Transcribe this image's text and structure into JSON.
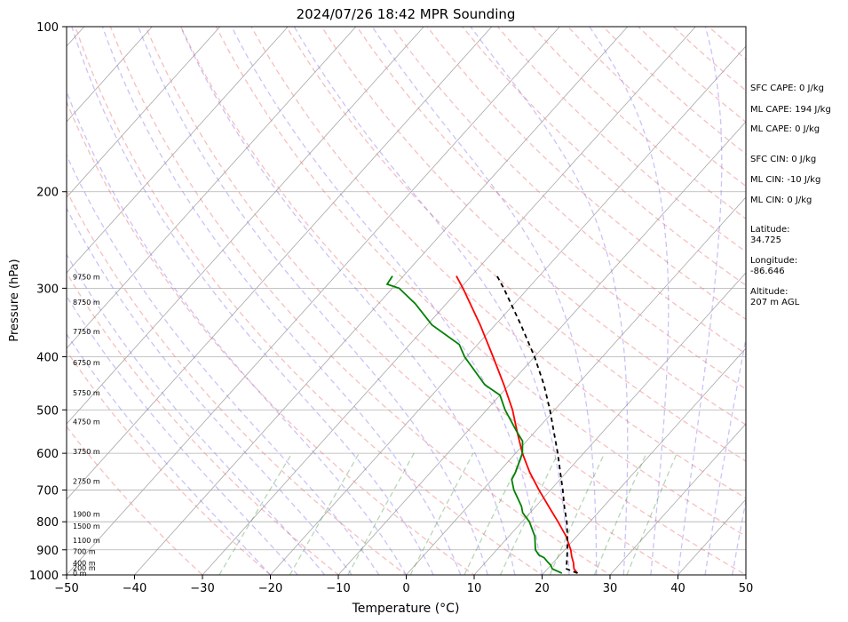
{
  "chart_data": {
    "type": "line",
    "title": "2024/07/26 18:42 MPR Sounding",
    "xlabel": "Temperature (°C)",
    "ylabel": "Pressure (hPa)",
    "xlim": [
      -50,
      50
    ],
    "ylim": [
      1000,
      100
    ],
    "y_scale": "log",
    "grid": true,
    "x_ticks": [
      -50,
      -40,
      -30,
      -20,
      -10,
      0,
      10,
      20,
      30,
      40,
      50
    ],
    "y_ticks": [
      100,
      200,
      300,
      400,
      500,
      600,
      700,
      800,
      900,
      1000
    ],
    "height_labels": [
      {
        "p": 286,
        "label": "9750 m"
      },
      {
        "p": 318,
        "label": "8750 m"
      },
      {
        "p": 360,
        "label": "7750 m"
      },
      {
        "p": 410,
        "label": "6750 m"
      },
      {
        "p": 465,
        "label": "5750 m"
      },
      {
        "p": 525,
        "label": "4750 m"
      },
      {
        "p": 595,
        "label": "3750 m"
      },
      {
        "p": 675,
        "label": "2750 m"
      },
      {
        "p": 775,
        "label": "1900 m"
      },
      {
        "p": 815,
        "label": "1500 m"
      },
      {
        "p": 865,
        "label": "1100 m"
      },
      {
        "p": 905,
        "label": "700 m"
      },
      {
        "p": 950,
        "label": "400 m"
      },
      {
        "p": 970,
        "label": "200 m"
      },
      {
        "p": 993,
        "label": "0 m"
      }
    ],
    "series": [
      {
        "name": "Temperature",
        "color": "#ff0000",
        "p": [
          993,
          975,
          950,
          925,
          900,
          850,
          800,
          750,
          700,
          650,
          600,
          550,
          500,
          450,
          400,
          350,
          300,
          285
        ],
        "values": [
          25.0,
          23.9,
          23.0,
          21.9,
          20.9,
          18.4,
          15.3,
          11.9,
          8.3,
          4.6,
          1.0,
          -2.5,
          -6.2,
          -10.8,
          -16.1,
          -22.2,
          -29.6,
          -32.2
        ]
      },
      {
        "name": "Dewpoint",
        "color": "#008000",
        "p": [
          993,
          975,
          960,
          950,
          930,
          920,
          900,
          850,
          800,
          770,
          750,
          700,
          670,
          650,
          600,
          570,
          550,
          500,
          470,
          450,
          400,
          380,
          350,
          320,
          300,
          295,
          285
        ],
        "values": [
          22.7,
          20.7,
          20.0,
          19.3,
          18.0,
          16.9,
          15.7,
          13.8,
          11.1,
          8.9,
          7.9,
          4.6,
          2.9,
          2.5,
          1.0,
          -0.6,
          -2.5,
          -7.3,
          -10.0,
          -13.6,
          -20.3,
          -22.7,
          -29.3,
          -34.6,
          -39.0,
          -41.3,
          -41.6
        ]
      },
      {
        "name": "Parcel",
        "color": "#000000",
        "dashed": true,
        "p": [
          993,
          975,
          950,
          900,
          850,
          800,
          750,
          700,
          650,
          600,
          550,
          500,
          450,
          400,
          350,
          300,
          285
        ],
        "values": [
          25.0,
          22.8,
          22.0,
          20.4,
          18.6,
          16.6,
          14.2,
          11.8,
          9.1,
          6.2,
          2.9,
          -0.7,
          -4.9,
          -10.0,
          -16.2,
          -23.6,
          -26.2
        ]
      }
    ],
    "side_text": [
      "SFC CAPE: 0 J/kg",
      "ML CAPE: 194 J/kg",
      "ML CAPE: 0 J/kg",
      "SFC CIN: 0 J/kg",
      "ML CIN: -10 J/kg",
      "ML CIN: 0 J/kg",
      "Latitude:",
      "34.725",
      "Longitude:",
      "-86.646",
      "Altitude:",
      "207 m AGL"
    ]
  }
}
